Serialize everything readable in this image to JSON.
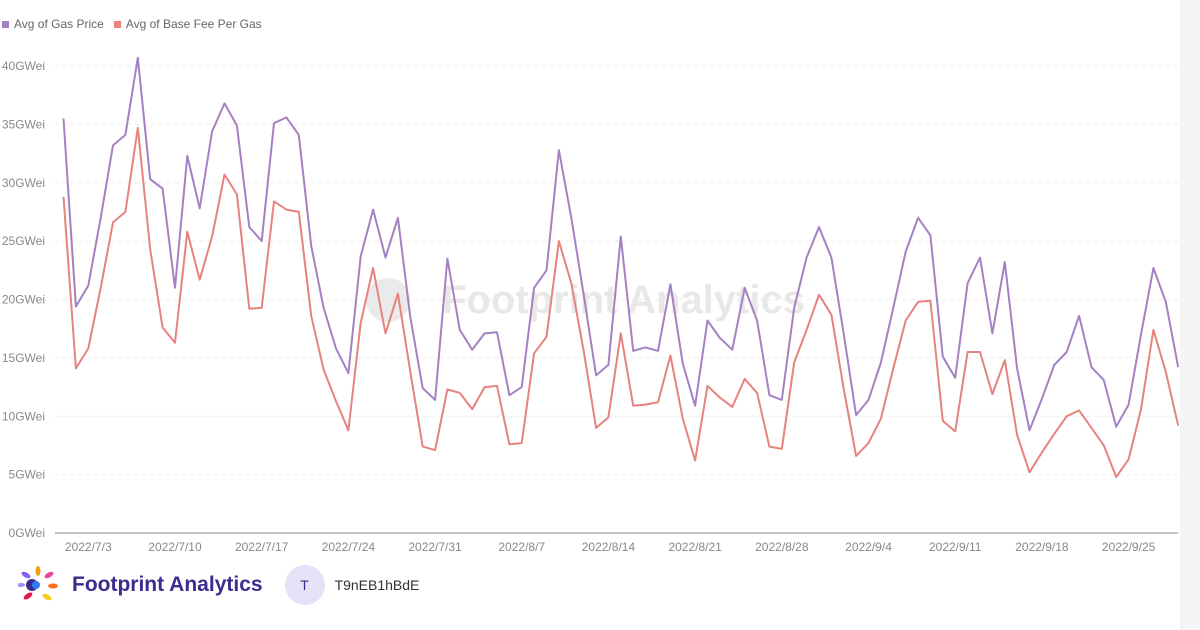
{
  "legend": {
    "items": [
      {
        "label": "Avg of Gas Price",
        "color": "#a481c2"
      },
      {
        "label": "Avg of Base Fee Per Gas",
        "color": "#e6837e"
      }
    ]
  },
  "watermark": {
    "text": "Footprint Analytics"
  },
  "footer": {
    "brand_name": "Footprint Analytics",
    "avatar_initial": "T",
    "username": "T9nEB1hBdE"
  },
  "chart_data": {
    "type": "line",
    "title": "",
    "xlabel": "",
    "ylabel": "",
    "ylim": [
      0,
      40
    ],
    "y_ticks": [
      "0GWei",
      "5GWei",
      "10GWei",
      "15GWei",
      "20GWei",
      "25GWei",
      "30GWei",
      "35GWei",
      "40GWei"
    ],
    "x_ticks": [
      "2022/7/3",
      "2022/7/10",
      "2022/7/17",
      "2022/7/24",
      "2022/7/31",
      "2022/8/7",
      "2022/8/14",
      "2022/8/21",
      "2022/8/28",
      "2022/9/4",
      "2022/9/11",
      "2022/9/18",
      "2022/9/25"
    ],
    "x_start": "2022/7/1",
    "grid": true,
    "legend_position": "top-left",
    "series": [
      {
        "name": "Avg of Gas Price",
        "color": "#a481c2",
        "values": [
          35.5,
          19.4,
          21.2,
          27,
          33.2,
          34.1,
          40.7,
          30.3,
          29.5,
          21,
          32.3,
          27.8,
          34.4,
          36.8,
          34.9,
          26.2,
          25,
          35.1,
          35.6,
          34.1,
          24.6,
          19.3,
          15.8,
          13.7,
          23.7,
          27.7,
          23.6,
          27,
          18.5,
          12.4,
          11.4,
          23.5,
          17.4,
          15.7,
          17.1,
          17.2,
          11.8,
          12.5,
          21,
          22.5,
          32.8,
          27,
          20.4,
          13.5,
          14.4,
          25.4,
          15.6,
          15.9,
          15.6,
          21.3,
          14.5,
          10.9,
          18.2,
          16.7,
          15.7,
          21,
          18.2,
          11.8,
          11.4,
          19.3,
          23.6,
          26.2,
          23.6,
          17,
          10.1,
          11.4,
          14.6,
          19.3,
          24.1,
          27,
          25.5,
          15.1,
          13.3,
          21.4,
          23.6,
          17.1,
          23.2,
          14.1,
          8.8,
          11.5,
          14.4,
          15.5,
          18.6,
          14.2,
          13.1,
          9.1,
          11,
          17,
          22.7,
          19.8,
          14.2
        ]
      },
      {
        "name": "Avg of Base Fee Per Gas",
        "color": "#e6837e",
        "values": [
          28.8,
          14.1,
          15.8,
          21,
          26.6,
          27.5,
          34.7,
          24.3,
          17.6,
          16.3,
          25.8,
          21.7,
          25.4,
          30.7,
          29,
          19.2,
          19.3,
          28.4,
          27.7,
          27.5,
          18.6,
          14,
          11.3,
          8.8,
          18,
          22.7,
          17.1,
          20.5,
          13.8,
          7.4,
          7.1,
          12.3,
          12,
          10.6,
          12.5,
          12.6,
          7.6,
          7.7,
          15.4,
          16.8,
          25,
          21.4,
          15.6,
          9,
          9.9,
          17.1,
          10.9,
          11,
          11.2,
          15.2,
          9.8,
          6.2,
          12.6,
          11.6,
          10.8,
          13.2,
          12,
          7.4,
          7.2,
          14.6,
          17.4,
          20.4,
          18.7,
          12.3,
          6.6,
          7.7,
          9.8,
          14.1,
          18.2,
          19.8,
          19.9,
          9.6,
          8.7,
          15.5,
          15.5,
          11.9,
          14.8,
          8.4,
          5.2,
          6.9,
          8.5,
          10,
          10.5,
          9,
          7.5,
          4.8,
          6.3,
          10.6,
          17.4,
          13.8,
          9.2
        ]
      }
    ]
  }
}
